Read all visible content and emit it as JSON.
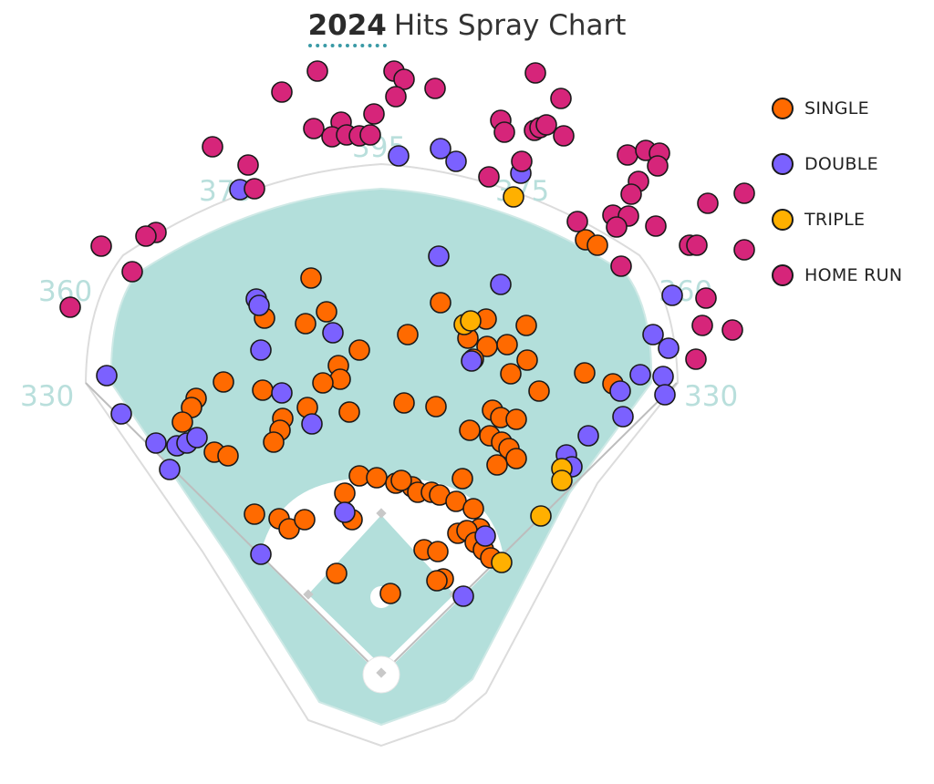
{
  "title": {
    "year": "2024",
    "text": "Hits Spray Chart"
  },
  "colors": {
    "single": "#ff6a00",
    "double": "#7b61ff",
    "triple": "#ffb000",
    "home_run": "#d6257a",
    "grass": "#b3dfdb",
    "outline": "#1a1a1a"
  },
  "legend": [
    {
      "key": "single",
      "label": "SINGLE"
    },
    {
      "key": "double",
      "label": "DOUBLE"
    },
    {
      "key": "triple",
      "label": "TRIPLE"
    },
    {
      "key": "home_run",
      "label": "HOME RUN"
    }
  ],
  "distances": {
    "lf_line": "330",
    "rf_line": "330",
    "lf_gap": "360",
    "rf_gap": "360",
    "lf_cf": "375",
    "cf": "395",
    "rf_cf": "375"
  },
  "chart_data": {
    "type": "scatter",
    "title": "2024 Hits Spray Chart",
    "legend_position": "top-right",
    "series": [
      {
        "name": "SINGLE",
        "key": "single",
        "points": [
          [
            341,
            305
          ],
          [
            290,
            349
          ],
          [
            335,
            355
          ],
          [
            358,
            342
          ],
          [
            447,
            367
          ],
          [
            483,
            332
          ],
          [
            533,
            350
          ],
          [
            577,
            357
          ],
          [
            513,
            371
          ],
          [
            534,
            380
          ],
          [
            556,
            378
          ],
          [
            394,
            384
          ],
          [
            371,
            401
          ],
          [
            373,
            416
          ],
          [
            354,
            420
          ],
          [
            337,
            447
          ],
          [
            383,
            452
          ],
          [
            443,
            442
          ],
          [
            478,
            446
          ],
          [
            245,
            419
          ],
          [
            288,
            428
          ],
          [
            310,
            459
          ],
          [
            307,
            472
          ],
          [
            300,
            485
          ],
          [
            215,
            437
          ],
          [
            210,
            447
          ],
          [
            200,
            463
          ],
          [
            235,
            496
          ],
          [
            250,
            500
          ],
          [
            519,
            394
          ],
          [
            560,
            410
          ],
          [
            578,
            395
          ],
          [
            591,
            429
          ],
          [
            641,
            409
          ],
          [
            672,
            421
          ],
          [
            515,
            472
          ],
          [
            537,
            478
          ],
          [
            550,
            485
          ],
          [
            558,
            492
          ],
          [
            566,
            503
          ],
          [
            545,
            510
          ],
          [
            540,
            450
          ],
          [
            549,
            458
          ],
          [
            566,
            460
          ],
          [
            394,
            522
          ],
          [
            413,
            524
          ],
          [
            434,
            530
          ],
          [
            452,
            534
          ],
          [
            440,
            527
          ],
          [
            458,
            540
          ],
          [
            473,
            540
          ],
          [
            482,
            543
          ],
          [
            500,
            550
          ],
          [
            507,
            525
          ],
          [
            519,
            558
          ],
          [
            526,
            580
          ],
          [
            502,
            585
          ],
          [
            512,
            582
          ],
          [
            521,
            595
          ],
          [
            530,
            603
          ],
          [
            538,
            612
          ],
          [
            465,
            603
          ],
          [
            480,
            605
          ],
          [
            486,
            635
          ],
          [
            479,
            637
          ],
          [
            378,
            541
          ],
          [
            386,
            570
          ],
          [
            279,
            564
          ],
          [
            306,
            569
          ],
          [
            317,
            580
          ],
          [
            334,
            570
          ],
          [
            369,
            629
          ],
          [
            428,
            651
          ],
          [
            642,
            263
          ],
          [
            655,
            269
          ]
        ]
      },
      {
        "name": "DOUBLE",
        "key": "double",
        "points": [
          [
            437,
            171
          ],
          [
            483,
            163
          ],
          [
            500,
            177
          ],
          [
            571,
            190
          ],
          [
            263,
            208
          ],
          [
            481,
            281
          ],
          [
            549,
            312
          ],
          [
            281,
            328
          ],
          [
            284,
            335
          ],
          [
            365,
            365
          ],
          [
            286,
            384
          ],
          [
            517,
            396
          ],
          [
            309,
            431
          ],
          [
            342,
            465
          ],
          [
            117,
            412
          ],
          [
            133,
            454
          ],
          [
            171,
            486
          ],
          [
            194,
            489
          ],
          [
            205,
            486
          ],
          [
            216,
            480
          ],
          [
            186,
            515
          ],
          [
            378,
            562
          ],
          [
            286,
            608
          ],
          [
            508,
            654
          ],
          [
            532,
            588
          ],
          [
            621,
            499
          ],
          [
            627,
            512
          ],
          [
            645,
            478
          ],
          [
            683,
            457
          ],
          [
            680,
            429
          ],
          [
            702,
            411
          ],
          [
            727,
            413
          ],
          [
            729,
            433
          ],
          [
            733,
            382
          ],
          [
            716,
            367
          ],
          [
            737,
            324
          ]
        ]
      },
      {
        "name": "TRIPLE",
        "key": "triple",
        "points": [
          [
            563,
            216
          ],
          [
            509,
            356
          ],
          [
            516,
            352
          ],
          [
            616,
            514
          ],
          [
            616,
            527
          ],
          [
            593,
            566
          ],
          [
            550,
            617
          ]
        ]
      },
      {
        "name": "HOME RUN",
        "key": "home_run",
        "points": [
          [
            348,
            78
          ],
          [
            432,
            78
          ],
          [
            443,
            87
          ],
          [
            309,
            101
          ],
          [
            434,
            106
          ],
          [
            477,
            97
          ],
          [
            587,
            80
          ],
          [
            615,
            108
          ],
          [
            410,
            125
          ],
          [
            374,
            134
          ],
          [
            344,
            141
          ],
          [
            364,
            150
          ],
          [
            380,
            148
          ],
          [
            394,
            149
          ],
          [
            406,
            148
          ],
          [
            549,
            132
          ],
          [
            553,
            145
          ],
          [
            586,
            143
          ],
          [
            592,
            140
          ],
          [
            599,
            137
          ],
          [
            618,
            149
          ],
          [
            572,
            177
          ],
          [
            536,
            194
          ],
          [
            233,
            161
          ],
          [
            272,
            181
          ],
          [
            279,
            207
          ],
          [
            688,
            170
          ],
          [
            708,
            165
          ],
          [
            723,
            168
          ],
          [
            721,
            182
          ],
          [
            700,
            199
          ],
          [
            692,
            213
          ],
          [
            672,
            236
          ],
          [
            689,
            237
          ],
          [
            676,
            249
          ],
          [
            719,
            248
          ],
          [
            633,
            243
          ],
          [
            776,
            223
          ],
          [
            816,
            212
          ],
          [
            756,
            269
          ],
          [
            764,
            269
          ],
          [
            816,
            274
          ],
          [
            681,
            292
          ],
          [
            171,
            255
          ],
          [
            160,
            259
          ],
          [
            111,
            270
          ],
          [
            145,
            298
          ],
          [
            77,
            337
          ],
          [
            774,
            327
          ],
          [
            770,
            357
          ],
          [
            803,
            362
          ],
          [
            763,
            394
          ]
        ]
      }
    ]
  }
}
